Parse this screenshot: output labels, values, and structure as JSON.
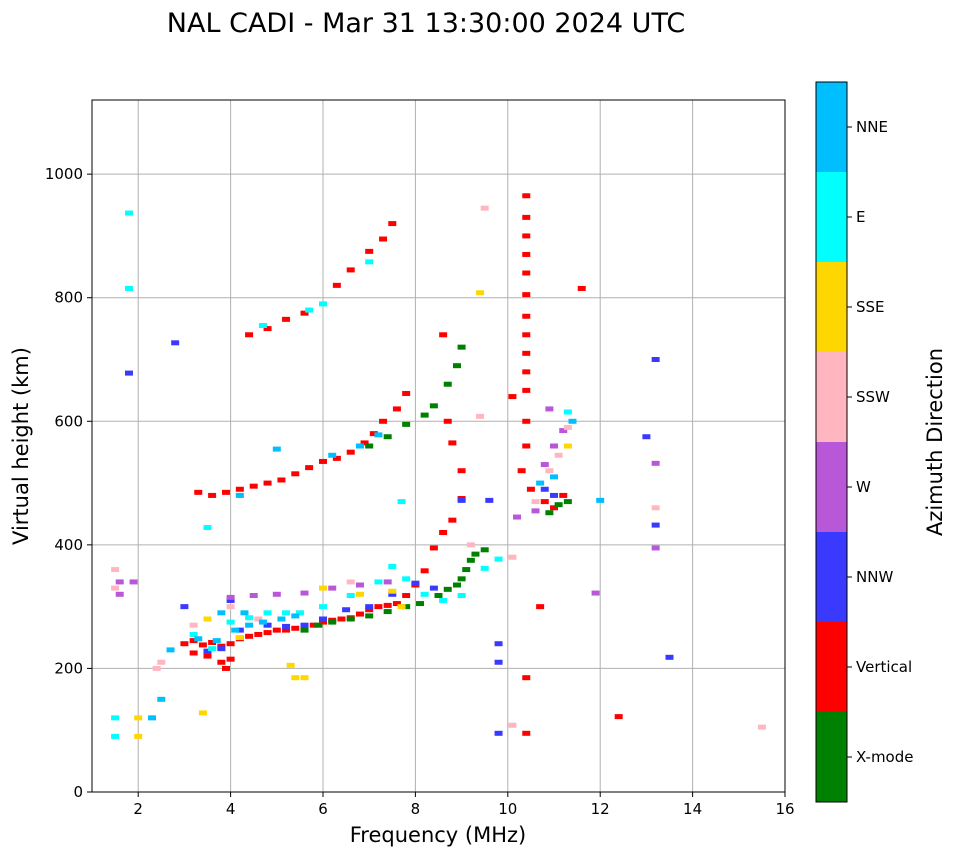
{
  "chart_data": {
    "type": "scatter",
    "title": "NAL CADI - Mar 31 13:30:00 2024 UTC",
    "xlabel": "Frequency (MHz)",
    "ylabel": "Virtual height (km)",
    "xlim": [
      1,
      16
    ],
    "ylim": [
      0,
      1120
    ],
    "xticks": [
      2,
      4,
      6,
      8,
      10,
      12,
      14,
      16
    ],
    "yticks": [
      0,
      200,
      400,
      600,
      800,
      1000
    ],
    "grid": true,
    "colorbar": {
      "label": "Azimuth Direction",
      "categories": [
        {
          "name": "X-mode",
          "color": "#008000"
        },
        {
          "name": "Vertical",
          "color": "#ff0000"
        },
        {
          "name": "NNW",
          "color": "#3a3aff"
        },
        {
          "name": "W",
          "color": "#b857d8"
        },
        {
          "name": "SSW",
          "color": "#ffb6c1"
        },
        {
          "name": "SSE",
          "color": "#ffd700"
        },
        {
          "name": "E",
          "color": "#00ffff"
        },
        {
          "name": "NNE",
          "color": "#00bfff"
        }
      ]
    },
    "series": [
      {
        "name": "Vertical",
        "points": [
          [
            3.0,
            240
          ],
          [
            3.2,
            245
          ],
          [
            3.4,
            238
          ],
          [
            3.6,
            242
          ],
          [
            3.8,
            236
          ],
          [
            4.0,
            240
          ],
          [
            4.2,
            248
          ],
          [
            4.4,
            252
          ],
          [
            4.6,
            255
          ],
          [
            4.8,
            258
          ],
          [
            5.0,
            262
          ],
          [
            5.2,
            262
          ],
          [
            5.4,
            265
          ],
          [
            5.6,
            268
          ],
          [
            5.8,
            270
          ],
          [
            6.0,
            275
          ],
          [
            6.2,
            278
          ],
          [
            6.4,
            280
          ],
          [
            6.6,
            282
          ],
          [
            6.8,
            288
          ],
          [
            7.0,
            295
          ],
          [
            7.2,
            300
          ],
          [
            7.4,
            302
          ],
          [
            7.6,
            305
          ],
          [
            7.8,
            318
          ],
          [
            8.0,
            335
          ],
          [
            8.2,
            358
          ],
          [
            8.4,
            395
          ],
          [
            8.6,
            420
          ],
          [
            8.8,
            440
          ],
          [
            9.0,
            475
          ],
          [
            3.2,
            225
          ],
          [
            3.5,
            220
          ],
          [
            3.8,
            210
          ],
          [
            3.9,
            200
          ],
          [
            4.0,
            215
          ],
          [
            3.3,
            485
          ],
          [
            3.6,
            480
          ],
          [
            3.9,
            485
          ],
          [
            4.2,
            490
          ],
          [
            4.5,
            495
          ],
          [
            4.8,
            500
          ],
          [
            5.1,
            505
          ],
          [
            5.4,
            515
          ],
          [
            5.7,
            525
          ],
          [
            6.0,
            535
          ],
          [
            6.3,
            540
          ],
          [
            6.6,
            550
          ],
          [
            6.9,
            565
          ],
          [
            7.1,
            580
          ],
          [
            7.3,
            600
          ],
          [
            7.6,
            620
          ],
          [
            7.8,
            645
          ],
          [
            4.4,
            740
          ],
          [
            4.8,
            750
          ],
          [
            5.2,
            765
          ],
          [
            5.6,
            775
          ],
          [
            6.3,
            820
          ],
          [
            6.6,
            845
          ],
          [
            7.0,
            875
          ],
          [
            7.3,
            895
          ],
          [
            7.5,
            920
          ],
          [
            8.6,
            740
          ],
          [
            8.7,
            600
          ],
          [
            8.8,
            565
          ],
          [
            9.0,
            520
          ],
          [
            10.4,
            965
          ],
          [
            10.4,
            930
          ],
          [
            10.4,
            900
          ],
          [
            10.4,
            870
          ],
          [
            10.4,
            840
          ],
          [
            10.4,
            805
          ],
          [
            10.4,
            770
          ],
          [
            10.4,
            740
          ],
          [
            10.4,
            710
          ],
          [
            10.4,
            680
          ],
          [
            10.4,
            650
          ],
          [
            10.1,
            640
          ],
          [
            10.4,
            600
          ],
          [
            10.4,
            560
          ],
          [
            10.3,
            520
          ],
          [
            10.5,
            490
          ],
          [
            10.8,
            470
          ],
          [
            11.0,
            460
          ],
          [
            11.2,
            480
          ],
          [
            10.7,
            300
          ],
          [
            10.4,
            185
          ],
          [
            10.4,
            95
          ],
          [
            12.4,
            122
          ],
          [
            11.6,
            815
          ]
        ]
      },
      {
        "name": "X-mode",
        "points": [
          [
            5.6,
            262
          ],
          [
            5.9,
            270
          ],
          [
            6.2,
            275
          ],
          [
            6.6,
            280
          ],
          [
            7.0,
            285
          ],
          [
            7.4,
            292
          ],
          [
            7.8,
            300
          ],
          [
            8.1,
            305
          ],
          [
            8.5,
            318
          ],
          [
            8.7,
            328
          ],
          [
            8.9,
            335
          ],
          [
            9.0,
            345
          ],
          [
            9.1,
            360
          ],
          [
            9.2,
            375
          ],
          [
            9.3,
            385
          ],
          [
            9.5,
            392
          ],
          [
            7.0,
            560
          ],
          [
            7.4,
            575
          ],
          [
            7.8,
            595
          ],
          [
            8.2,
            610
          ],
          [
            8.4,
            625
          ],
          [
            8.7,
            660
          ],
          [
            8.9,
            690
          ],
          [
            9.0,
            720
          ],
          [
            10.9,
            452
          ],
          [
            11.1,
            465
          ],
          [
            11.3,
            470
          ]
        ]
      },
      {
        "name": "NNW",
        "points": [
          [
            3.5,
            228
          ],
          [
            3.8,
            232
          ],
          [
            4.2,
            262
          ],
          [
            4.8,
            270
          ],
          [
            5.2,
            268
          ],
          [
            5.6,
            270
          ],
          [
            6.0,
            280
          ],
          [
            6.5,
            295
          ],
          [
            7.0,
            300
          ],
          [
            7.5,
            320
          ],
          [
            8.0,
            338
          ],
          [
            8.4,
            330
          ],
          [
            9.0,
            472
          ],
          [
            9.6,
            472
          ],
          [
            10.8,
            490
          ],
          [
            11.0,
            480
          ],
          [
            13.2,
            700
          ],
          [
            13.0,
            575
          ],
          [
            13.2,
            432
          ],
          [
            13.5,
            218
          ],
          [
            9.8,
            240
          ],
          [
            9.8,
            210
          ],
          [
            9.8,
            95
          ],
          [
            3.0,
            300
          ],
          [
            4.0,
            310
          ],
          [
            2.8,
            727
          ],
          [
            1.8,
            678
          ]
        ]
      },
      {
        "name": "W",
        "points": [
          [
            4.0,
            315
          ],
          [
            4.5,
            318
          ],
          [
            5.0,
            320
          ],
          [
            5.6,
            322
          ],
          [
            6.2,
            330
          ],
          [
            6.8,
            335
          ],
          [
            7.4,
            340
          ],
          [
            10.2,
            445
          ],
          [
            10.6,
            455
          ],
          [
            10.8,
            530
          ],
          [
            11.0,
            560
          ],
          [
            11.2,
            585
          ],
          [
            10.9,
            620
          ],
          [
            13.2,
            532
          ],
          [
            13.2,
            395
          ],
          [
            11.9,
            322
          ],
          [
            1.6,
            320
          ],
          [
            1.6,
            340
          ],
          [
            1.9,
            340
          ]
        ]
      },
      {
        "name": "SSW",
        "points": [
          [
            2.4,
            200
          ],
          [
            2.5,
            210
          ],
          [
            3.2,
            270
          ],
          [
            4.0,
            300
          ],
          [
            4.6,
            280
          ],
          [
            5.5,
            290
          ],
          [
            6.6,
            340
          ],
          [
            9.2,
            400
          ],
          [
            10.1,
            380
          ],
          [
            10.6,
            470
          ],
          [
            10.9,
            520
          ],
          [
            11.1,
            545
          ],
          [
            11.3,
            590
          ],
          [
            9.5,
            945
          ],
          [
            9.4,
            608
          ],
          [
            10.1,
            108
          ],
          [
            13.2,
            460
          ],
          [
            15.5,
            105
          ],
          [
            1.5,
            360
          ],
          [
            1.5,
            330
          ]
        ]
      },
      {
        "name": "SSE",
        "points": [
          [
            3.5,
            280
          ],
          [
            4.2,
            250
          ],
          [
            5.3,
            205
          ],
          [
            5.6,
            185
          ],
          [
            6.0,
            330
          ],
          [
            6.8,
            320
          ],
          [
            7.5,
            325
          ],
          [
            9.4,
            808
          ],
          [
            11.3,
            560
          ],
          [
            3.4,
            128
          ],
          [
            2.0,
            120
          ],
          [
            2.0,
            90
          ],
          [
            5.4,
            185
          ],
          [
            7.7,
            300
          ]
        ]
      },
      {
        "name": "E",
        "points": [
          [
            3.2,
            255
          ],
          [
            3.6,
            232
          ],
          [
            4.0,
            275
          ],
          [
            4.4,
            282
          ],
          [
            4.8,
            290
          ],
          [
            5.2,
            290
          ],
          [
            5.5,
            290
          ],
          [
            6.0,
            300
          ],
          [
            6.6,
            318
          ],
          [
            7.2,
            340
          ],
          [
            7.5,
            365
          ],
          [
            7.8,
            345
          ],
          [
            8.2,
            320
          ],
          [
            8.6,
            310
          ],
          [
            9.0,
            318
          ],
          [
            9.5,
            362
          ],
          [
            9.8,
            377
          ],
          [
            3.5,
            428
          ],
          [
            1.8,
            937
          ],
          [
            1.8,
            815
          ],
          [
            4.7,
            755
          ],
          [
            5.7,
            780
          ],
          [
            6.0,
            790
          ],
          [
            7.0,
            858
          ],
          [
            1.5,
            120
          ],
          [
            1.5,
            90
          ],
          [
            11.3,
            615
          ],
          [
            7.7,
            470
          ]
        ]
      },
      {
        "name": "NNE",
        "points": [
          [
            3.3,
            248
          ],
          [
            3.7,
            245
          ],
          [
            4.1,
            262
          ],
          [
            4.4,
            270
          ],
          [
            4.7,
            275
          ],
          [
            5.1,
            280
          ],
          [
            5.4,
            285
          ],
          [
            3.8,
            290
          ],
          [
            4.3,
            290
          ],
          [
            6.2,
            545
          ],
          [
            6.8,
            560
          ],
          [
            7.2,
            578
          ],
          [
            5.0,
            555
          ],
          [
            4.2,
            480
          ],
          [
            10.7,
            500
          ],
          [
            11.0,
            510
          ],
          [
            11.4,
            600
          ],
          [
            2.3,
            120
          ],
          [
            2.5,
            150
          ],
          [
            12.0,
            472
          ],
          [
            2.7,
            230
          ]
        ]
      }
    ]
  }
}
